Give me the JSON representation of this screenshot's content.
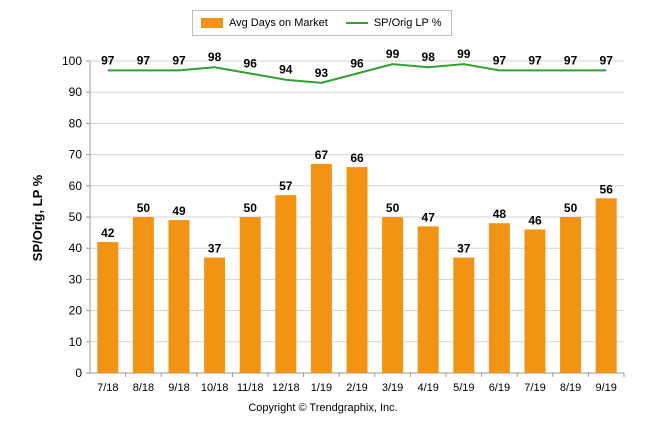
{
  "chart_data": {
    "type": "bar",
    "categories": [
      "7/18",
      "8/18",
      "9/18",
      "10/18",
      "11/18",
      "12/18",
      "1/19",
      "2/19",
      "3/19",
      "4/19",
      "5/19",
      "6/19",
      "7/19",
      "8/19",
      "9/19"
    ],
    "series": [
      {
        "name": "Avg Days on Market",
        "type": "bar",
        "values": [
          42,
          50,
          49,
          37,
          50,
          57,
          67,
          66,
          50,
          47,
          37,
          48,
          46,
          50,
          56
        ],
        "color": "#f39314"
      },
      {
        "name": "SP/Orig LP %",
        "type": "line",
        "values": [
          97,
          97,
          97,
          98,
          96,
          94,
          93,
          96,
          99,
          98,
          99,
          97,
          97,
          97,
          97
        ],
        "color": "#33a02c"
      }
    ],
    "ylabel": "SP/Orig, LP %",
    "ylim": [
      0,
      100
    ],
    "yticks": [
      0,
      10,
      20,
      30,
      40,
      50,
      60,
      70,
      80,
      90,
      100
    ],
    "grid": true,
    "legend_position": "top-center"
  },
  "footer": {
    "copyright": "Copyright © Trendgraphix, Inc."
  }
}
